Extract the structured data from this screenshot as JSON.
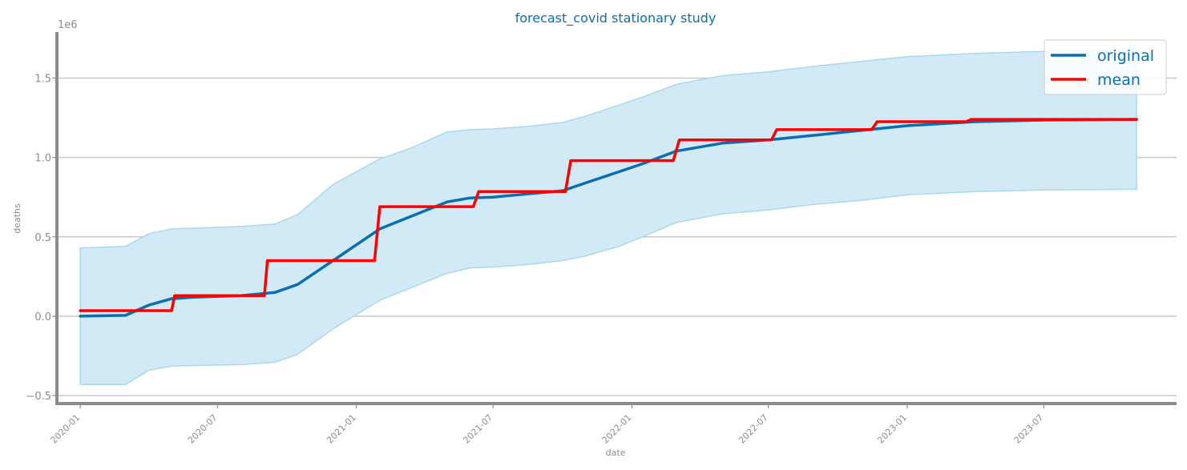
{
  "chart_data": {
    "type": "line",
    "title": "forecast_covid stationary study",
    "xlabel": "date",
    "ylabel": "deaths",
    "y_offset_label": "1e6",
    "ylim": [
      -0.54,
      1.79
    ],
    "xlim": [
      "2019-12-01",
      "2023-12-24"
    ],
    "grid": "horizontal",
    "legend_position": "top-right",
    "x_ticks": [
      {
        "date": "2020-01-01",
        "label": "2020-01"
      },
      {
        "date": "2020-07-01",
        "label": "2020-07"
      },
      {
        "date": "2021-01-01",
        "label": "2021-01"
      },
      {
        "date": "2021-07-01",
        "label": "2021-07"
      },
      {
        "date": "2022-01-01",
        "label": "2022-01"
      },
      {
        "date": "2022-07-01",
        "label": "2022-07"
      },
      {
        "date": "2023-01-01",
        "label": "2023-01"
      },
      {
        "date": "2023-07-01",
        "label": "2023-07"
      }
    ],
    "y_ticks": [
      {
        "value": -0.5,
        "label": "−0.5"
      },
      {
        "value": 0.0,
        "label": "0.0"
      },
      {
        "value": 0.5,
        "label": "0.5"
      },
      {
        "value": 1.0,
        "label": "1.0"
      },
      {
        "value": 1.5,
        "label": "1.5"
      }
    ],
    "colors": {
      "original": "#0a6fb2",
      "mean": "#ff0000",
      "band_fill": "#d2eaf5",
      "band_edge": "#aad9ec",
      "text": "#0a6fb2",
      "axis": "#8c8c8c",
      "grid": "#c8c8c8",
      "tick_text": "#8c8c8c"
    },
    "series": [
      {
        "name": "original",
        "x": [
          "2020-01-01",
          "2020-03-01",
          "2020-04-01",
          "2020-05-01",
          "2020-06-01",
          "2020-08-01",
          "2020-09-15",
          "2020-10-15",
          "2020-12-01",
          "2021-02-01",
          "2021-03-15",
          "2021-05-01",
          "2021-06-01",
          "2021-07-01",
          "2021-08-15",
          "2021-10-01",
          "2021-11-01",
          "2021-12-15",
          "2022-01-15",
          "2022-03-01",
          "2022-05-01",
          "2022-07-01",
          "2022-09-01",
          "2022-11-01",
          "2023-01-01",
          "2023-04-01",
          "2023-07-01",
          "2023-11-01"
        ],
        "values": [
          0.0,
          0.005,
          0.07,
          0.11,
          0.12,
          0.13,
          0.15,
          0.2,
          0.35,
          0.55,
          0.63,
          0.72,
          0.745,
          0.75,
          0.77,
          0.79,
          0.84,
          0.91,
          0.96,
          1.04,
          1.09,
          1.11,
          1.14,
          1.17,
          1.2,
          1.225,
          1.235,
          1.24
        ]
      },
      {
        "name": "mean",
        "x": [
          "2020-01-01",
          "2020-05-01",
          "2020-05-05",
          "2020-09-01",
          "2020-09-05",
          "2021-01-25",
          "2021-02-01",
          "2021-06-05",
          "2021-06-12",
          "2021-10-05",
          "2021-10-12",
          "2022-02-25",
          "2022-03-05",
          "2022-07-05",
          "2022-07-12",
          "2022-11-15",
          "2022-11-22",
          "2023-03-20",
          "2023-03-27",
          "2023-11-01"
        ],
        "values": [
          0.035,
          0.035,
          0.13,
          0.13,
          0.35,
          0.35,
          0.69,
          0.69,
          0.785,
          0.785,
          0.98,
          0.98,
          1.11,
          1.11,
          1.175,
          1.175,
          1.225,
          1.225,
          1.24,
          1.24
        ]
      }
    ],
    "band": {
      "x": [
        "2020-01-01",
        "2020-03-01",
        "2020-04-01",
        "2020-05-01",
        "2020-06-01",
        "2020-08-01",
        "2020-09-15",
        "2020-10-15",
        "2020-12-01",
        "2021-02-01",
        "2021-03-15",
        "2021-05-01",
        "2021-06-01",
        "2021-07-01",
        "2021-08-15",
        "2021-10-01",
        "2021-11-01",
        "2021-12-15",
        "2022-01-15",
        "2022-03-01",
        "2022-05-01",
        "2022-07-01",
        "2022-09-01",
        "2022-11-01",
        "2023-01-01",
        "2023-04-01",
        "2023-07-01",
        "2023-11-01"
      ],
      "upper": [
        0.43,
        0.44,
        0.52,
        0.55,
        0.555,
        0.565,
        0.58,
        0.64,
        0.83,
        0.99,
        1.06,
        1.16,
        1.175,
        1.18,
        1.195,
        1.22,
        1.26,
        1.33,
        1.38,
        1.46,
        1.515,
        1.54,
        1.575,
        1.605,
        1.635,
        1.655,
        1.668,
        1.675
      ],
      "lower": [
        -0.43,
        -0.43,
        -0.34,
        -0.315,
        -0.31,
        -0.305,
        -0.29,
        -0.24,
        -0.08,
        0.1,
        0.18,
        0.27,
        0.305,
        0.31,
        0.325,
        0.35,
        0.38,
        0.44,
        0.5,
        0.59,
        0.645,
        0.67,
        0.705,
        0.73,
        0.765,
        0.785,
        0.795,
        0.8
      ]
    }
  }
}
